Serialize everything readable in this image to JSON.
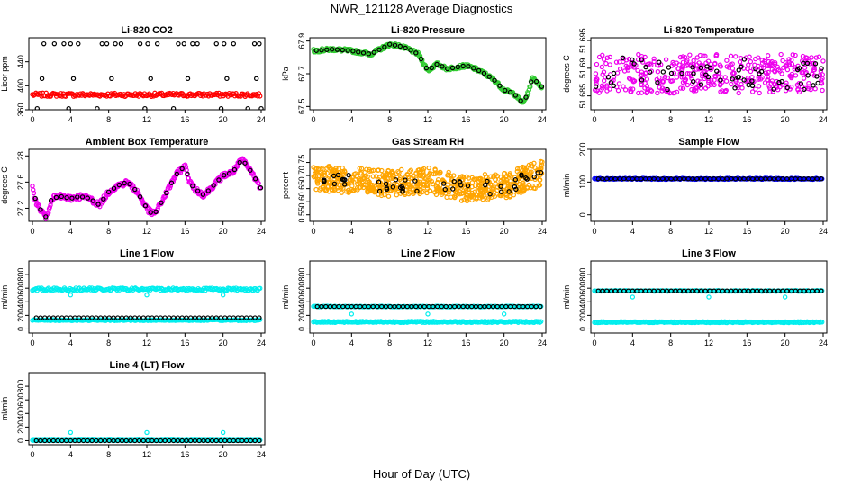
{
  "figure": {
    "title": "NWR_121128  Average Diagnostics",
    "xlabel": "Hour of Day (UTC)"
  },
  "chart_data": [
    {
      "type": "scatter",
      "title": "Li-820 CO2",
      "ylabel": "Licor ppm",
      "xlim": [
        0,
        24
      ],
      "xticks": [
        0,
        4,
        8,
        12,
        16,
        20,
        24
      ],
      "ylim": [
        360,
        480
      ],
      "yticks": [
        360,
        400,
        440
      ],
      "series": [
        {
          "color": "#ff0000",
          "kind": "band",
          "center": 385,
          "spread": 3
        },
        {
          "color": "#000000",
          "kind": "points",
          "x": [
            1.2,
            2.3,
            3.3,
            4.0,
            4.8,
            7.3,
            7.8,
            8.7,
            9.3,
            11.3,
            12.1,
            13.1,
            15.3,
            15.9,
            16.8,
            17.3,
            19.3,
            20.1,
            21.1,
            23.3,
            23.8,
            0.5,
            3.8,
            6.8,
            11.8,
            14.8,
            19.8,
            22.6,
            24.0,
            1.0,
            4.3,
            8.3,
            12.4,
            16.3,
            20.4,
            23.5
          ],
          "y": [
            470,
            470,
            470,
            470,
            470,
            470,
            470,
            470,
            470,
            470,
            470,
            470,
            470,
            470,
            470,
            470,
            470,
            470,
            470,
            470,
            470,
            362,
            362,
            362,
            362,
            362,
            362,
            362,
            362,
            412,
            412,
            412,
            412,
            412,
            412,
            412
          ]
        }
      ]
    },
    {
      "type": "scatter",
      "title": "Li-820 Pressure",
      "ylabel": "kPa",
      "xlim": [
        0,
        24
      ],
      "xticks": [
        0,
        4,
        8,
        12,
        16,
        20,
        24
      ],
      "ylim": [
        67.48,
        67.92
      ],
      "yticks": [
        67.5,
        67.7,
        67.9
      ],
      "series": [
        {
          "color": "#33cc33",
          "kind": "curve",
          "x": [
            0,
            2,
            4,
            6,
            8,
            9,
            10,
            11,
            12,
            13,
            14,
            15,
            16,
            17,
            18,
            19,
            20,
            21,
            22,
            22.5,
            23,
            23.3,
            23.7,
            24
          ],
          "y": [
            67.84,
            67.85,
            67.84,
            67.82,
            67.88,
            67.87,
            67.85,
            67.82,
            67.72,
            67.76,
            67.73,
            67.74,
            67.75,
            67.73,
            67.7,
            67.66,
            67.6,
            67.58,
            67.52,
            67.58,
            67.68,
            67.66,
            67.63,
            67.62
          ],
          "jitter": 0.01
        },
        {
          "color": "#000000",
          "kind": "sample",
          "step": 0.55
        }
      ]
    },
    {
      "type": "scatter",
      "title": "Li-820 Temperature",
      "ylabel": "degrees C",
      "xlim": [
        0,
        24
      ],
      "xticks": [
        0,
        4,
        8,
        12,
        16,
        20,
        24
      ],
      "ylim": [
        51.6825,
        51.6955
      ],
      "yticks": [
        51.685,
        51.69,
        51.695
      ],
      "series": [
        {
          "color": "#ee00ee",
          "kind": "noise",
          "center": 51.689,
          "spread": 0.0035,
          "count": 420
        },
        {
          "color": "#000000",
          "kind": "noise",
          "center": 51.689,
          "spread": 0.003,
          "count": 60
        }
      ]
    },
    {
      "type": "scatter",
      "title": "Ambient Box Temperature",
      "ylabel": "degrees C",
      "xlim": [
        0,
        24
      ],
      "xticks": [
        0,
        4,
        8,
        12,
        16,
        20,
        24
      ],
      "ylim": [
        27.0,
        28.1
      ],
      "yticks": [
        27.2,
        27.6,
        28.0
      ],
      "series": [
        {
          "color": "#ee00ee",
          "kind": "curve",
          "x": [
            0,
            0.5,
            1,
            1.5,
            2,
            3,
            4,
            5,
            6,
            7,
            8,
            9,
            10,
            11,
            12,
            12.5,
            13,
            14,
            15,
            16,
            16.5,
            17,
            18,
            19,
            20,
            21,
            22,
            23,
            24
          ],
          "y": [
            27.5,
            27.25,
            27.15,
            27.05,
            27.35,
            27.38,
            27.35,
            27.38,
            27.35,
            27.25,
            27.45,
            27.55,
            27.6,
            27.45,
            27.2,
            27.12,
            27.15,
            27.42,
            27.7,
            27.85,
            27.6,
            27.5,
            27.4,
            27.55,
            27.7,
            27.75,
            27.95,
            27.75,
            27.5
          ],
          "jitter": 0.04
        },
        {
          "color": "#000000",
          "kind": "sample",
          "step": 0.55
        }
      ]
    },
    {
      "type": "scatter",
      "title": "Gas Stream RH",
      "ylabel": "percent",
      "xlim": [
        0,
        24
      ],
      "xticks": [
        0,
        4,
        8,
        12,
        16,
        20,
        24
      ],
      "ylim": [
        0.525,
        0.8
      ],
      "yticks": [
        0.55,
        0.6,
        0.65,
        0.7,
        0.75
      ],
      "series": [
        {
          "color": "#ffa500",
          "kind": "noisecurve",
          "x": [
            0,
            4,
            8,
            12,
            16,
            20,
            24
          ],
          "y": [
            0.69,
            0.68,
            0.67,
            0.68,
            0.65,
            0.66,
            0.71
          ],
          "spread": 0.05,
          "count": 700
        },
        {
          "color": "#000000",
          "kind": "noisecurve",
          "x": [
            0,
            4,
            8,
            12,
            16,
            20,
            24
          ],
          "y": [
            0.7,
            0.68,
            0.66,
            0.66,
            0.66,
            0.65,
            0.72
          ],
          "spread": 0.025,
          "count": 50
        }
      ]
    },
    {
      "type": "scatter",
      "title": "Sample Flow",
      "ylabel": "ml/min",
      "xlim": [
        0,
        24
      ],
      "xticks": [
        0,
        4,
        8,
        12,
        16,
        20,
        24
      ],
      "ylim": [
        -20,
        200
      ],
      "yticks": [
        0,
        100,
        200
      ],
      "series": [
        {
          "color": "#0000ff",
          "kind": "band",
          "center": 110,
          "spread": 2
        },
        {
          "color": "#000000",
          "kind": "flat",
          "value": 110,
          "step": 0.45
        }
      ]
    },
    {
      "type": "scatter",
      "title": "Line 1 Flow",
      "ylabel": "ml/min",
      "xlim": [
        0,
        24
      ],
      "xticks": [
        0,
        4,
        8,
        12,
        16,
        20,
        24
      ],
      "ylim": [
        -60,
        1000
      ],
      "yticks": [
        0,
        200,
        400,
        600,
        800
      ],
      "series": [
        {
          "color": "#00eeee",
          "kind": "band",
          "center": 585,
          "spread": 20,
          "outliers": [
            [
              4,
              500
            ],
            [
              12,
              500
            ],
            [
              20,
              500
            ]
          ]
        },
        {
          "color": "#00eeee",
          "kind": "band",
          "center": 130,
          "spread": 8
        },
        {
          "color": "#000000",
          "kind": "flat",
          "value": 165,
          "step": 0.45
        }
      ]
    },
    {
      "type": "scatter",
      "title": "Line 2 Flow",
      "ylabel": "ml/min",
      "xlim": [
        0,
        24
      ],
      "xticks": [
        0,
        4,
        8,
        12,
        16,
        20,
        24
      ],
      "ylim": [
        -60,
        1000
      ],
      "yticks": [
        0,
        200,
        400,
        600,
        800
      ],
      "series": [
        {
          "color": "#00eeee",
          "kind": "band",
          "center": 105,
          "spread": 10,
          "outliers": [
            [
              4,
              220
            ],
            [
              12,
              220
            ],
            [
              20,
              220
            ]
          ]
        },
        {
          "color": "#00eeee",
          "kind": "band",
          "center": 330,
          "spread": 6
        },
        {
          "color": "#000000",
          "kind": "flat",
          "value": 330,
          "step": 0.45
        }
      ]
    },
    {
      "type": "scatter",
      "title": "Line 3 Flow",
      "ylabel": "ml/min",
      "xlim": [
        0,
        24
      ],
      "xticks": [
        0,
        4,
        8,
        12,
        16,
        20,
        24
      ],
      "ylim": [
        -60,
        1000
      ],
      "yticks": [
        0,
        200,
        400,
        600,
        800
      ],
      "series": [
        {
          "color": "#00eeee",
          "kind": "band",
          "center": 100,
          "spread": 8,
          "outliers": [
            [
              4,
              470
            ],
            [
              12,
              470
            ],
            [
              20,
              470
            ]
          ]
        },
        {
          "color": "#00eeee",
          "kind": "band",
          "center": 560,
          "spread": 6
        },
        {
          "color": "#000000",
          "kind": "flat",
          "value": 560,
          "step": 0.45
        }
      ]
    },
    {
      "type": "scatter",
      "title": "Line 4 (LT) Flow",
      "ylabel": "ml/min",
      "xlim": [
        0,
        24
      ],
      "xticks": [
        0,
        4,
        8,
        12,
        16,
        20,
        24
      ],
      "ylim": [
        -60,
        1000
      ],
      "yticks": [
        0,
        200,
        400,
        600,
        800
      ],
      "series": [
        {
          "color": "#00eeee",
          "kind": "band",
          "center": 5,
          "spread": 4,
          "outliers": [
            [
              4,
              120
            ],
            [
              12,
              120
            ],
            [
              20,
              120
            ]
          ]
        },
        {
          "color": "#000000",
          "kind": "flat",
          "value": 0,
          "step": 0.45
        }
      ]
    }
  ]
}
